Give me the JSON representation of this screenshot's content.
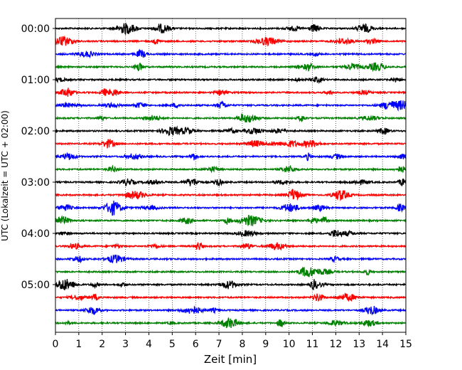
{
  "chart_data": {
    "type": "line",
    "title": "",
    "xlabel": "Zeit  [min]",
    "ylabel": "UTC (Lokalzeit = UTC + 02:00)",
    "xlim": [
      0,
      15
    ],
    "x_ticks": [
      0,
      1,
      2,
      3,
      4,
      5,
      6,
      7,
      8,
      9,
      10,
      11,
      12,
      13,
      14,
      15
    ],
    "y_tick_labels": [
      "00:00",
      "01:00",
      "02:00",
      "03:00",
      "04:00",
      "05:00"
    ],
    "grid": "vertical dotted",
    "trace_interval_minutes": 15,
    "trace_count": 24,
    "series_colors": [
      "#000000",
      "#ff0000",
      "#0000ff",
      "#008000"
    ],
    "traces": [
      {
        "start": "00:00",
        "color": "#000000"
      },
      {
        "start": "00:15",
        "color": "#ff0000"
      },
      {
        "start": "00:30",
        "color": "#0000ff"
      },
      {
        "start": "00:45",
        "color": "#008000"
      },
      {
        "start": "01:00",
        "color": "#000000"
      },
      {
        "start": "01:15",
        "color": "#ff0000"
      },
      {
        "start": "01:30",
        "color": "#0000ff"
      },
      {
        "start": "01:45",
        "color": "#008000"
      },
      {
        "start": "02:00",
        "color": "#000000"
      },
      {
        "start": "02:15",
        "color": "#ff0000"
      },
      {
        "start": "02:30",
        "color": "#0000ff"
      },
      {
        "start": "02:45",
        "color": "#008000"
      },
      {
        "start": "03:00",
        "color": "#000000"
      },
      {
        "start": "03:15",
        "color": "#ff0000"
      },
      {
        "start": "03:30",
        "color": "#0000ff"
      },
      {
        "start": "03:45",
        "color": "#008000"
      },
      {
        "start": "04:00",
        "color": "#000000"
      },
      {
        "start": "04:15",
        "color": "#ff0000"
      },
      {
        "start": "04:30",
        "color": "#0000ff"
      },
      {
        "start": "04:45",
        "color": "#008000"
      },
      {
        "start": "05:00",
        "color": "#000000"
      },
      {
        "start": "05:15",
        "color": "#ff0000"
      },
      {
        "start": "05:30",
        "color": "#0000ff"
      },
      {
        "start": "05:45",
        "color": "#008000"
      }
    ]
  }
}
